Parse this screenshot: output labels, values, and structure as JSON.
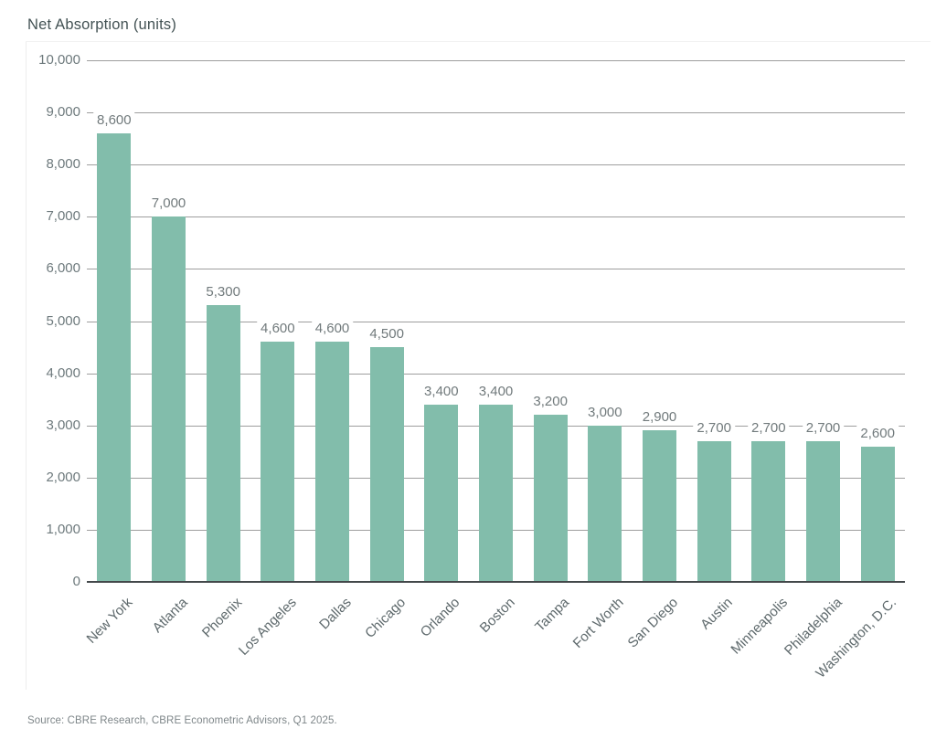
{
  "title": "Net Absorption (units)",
  "source": "Source: CBRE Research, CBRE Econometric Advisors, Q1 2025.",
  "colors": {
    "bar": "#82bdab",
    "gridline": "#9e9e9e",
    "axis_baseline": "#43484a",
    "title_text": "#435254",
    "tick_text": "#6e7a7d",
    "value_text": "#717a7c",
    "category_text": "#5e696c",
    "source_text": "#7e8689"
  },
  "chart_data": {
    "type": "bar",
    "title": "Net Absorption (units)",
    "categories": [
      "New York",
      "Atlanta",
      "Phoenix",
      "Los Angeles",
      "Dallas",
      "Chicago",
      "Orlando",
      "Boston",
      "Tampa",
      "Fort Worth",
      "San Diego",
      "Austin",
      "Minneapolis",
      "Philadelphia",
      "Washington, D.C."
    ],
    "values": [
      8600,
      7000,
      5300,
      4600,
      4600,
      4500,
      3400,
      3400,
      3200,
      3000,
      2900,
      2700,
      2700,
      2700,
      2600
    ],
    "value_labels": [
      "8,600",
      "7,000",
      "5,300",
      "4,600",
      "4,600",
      "4,500",
      "3,400",
      "3,400",
      "3,200",
      "3,000",
      "2,900",
      "2,700",
      "2,700",
      "2,700",
      "2,600"
    ],
    "xlabel": "",
    "ylabel": "",
    "ylim": [
      0,
      10000
    ],
    "ytick_step": 1000,
    "ytick_labels": [
      "0",
      "1,000",
      "2,000",
      "3,000",
      "4,000",
      "5,000",
      "6,000",
      "7,000",
      "8,000",
      "9,000",
      "10,000"
    ],
    "grid": true,
    "legend": "none",
    "bar_color": "#82bdab"
  }
}
